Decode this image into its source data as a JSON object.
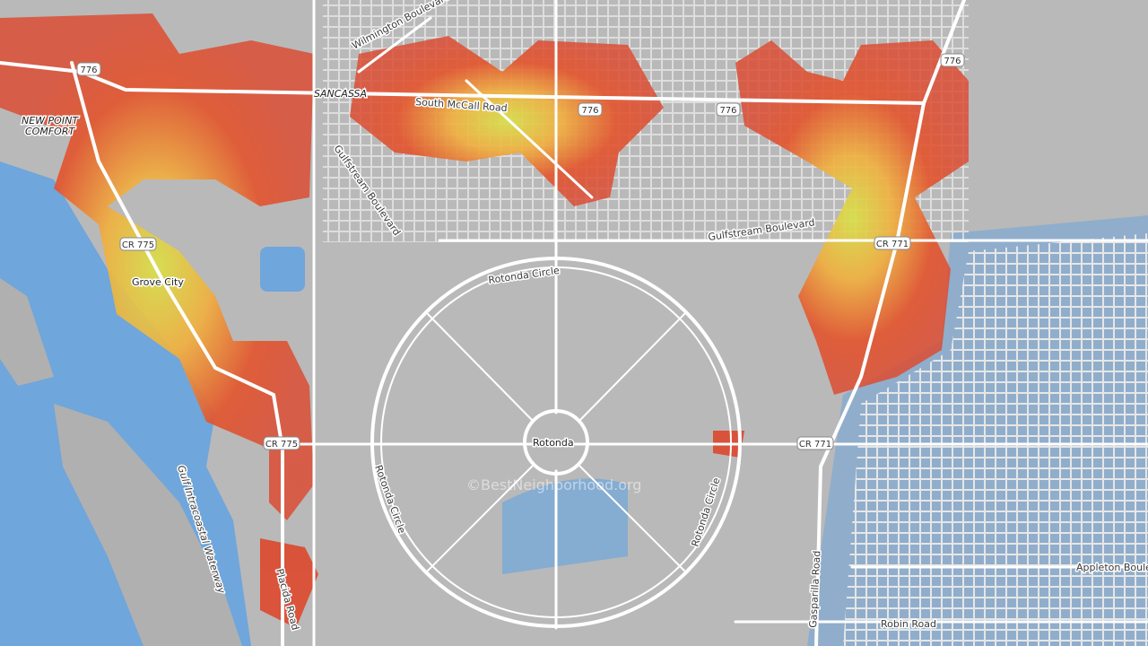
{
  "map": {
    "roads": [
      "Wilmington Boulevard",
      "South McCall Road",
      "Gulfstream Boulevard",
      "Gulfstream Boulevard",
      "Rotonda Circle",
      "Rotonda Circle",
      "Rotonda Circle",
      "Gasparilla Road",
      "Placida Road",
      "Robin Road",
      "Appleton Boule"
    ],
    "shields": [
      "776",
      "776",
      "776",
      "776",
      "CR 775",
      "CR 775",
      "CR 771",
      "CR 771"
    ],
    "places": [
      "SANCASSA",
      "NEW POINT",
      "COMFORT",
      "Grove City",
      "Rotonda"
    ],
    "water": [
      "Gulf Intracoastal Waterway"
    ],
    "watermark": "©BestNeighborhood.org"
  }
}
